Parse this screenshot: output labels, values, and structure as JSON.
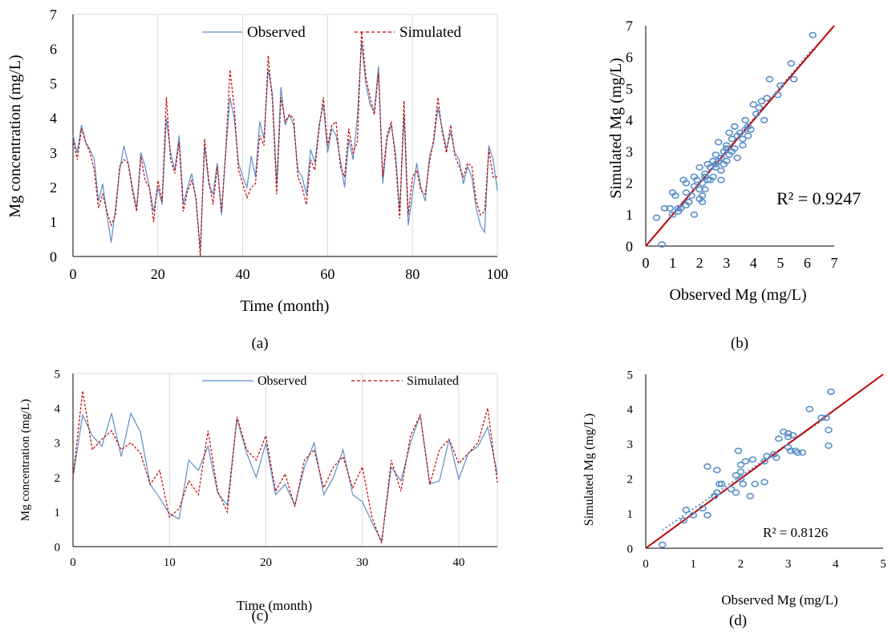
{
  "colors": {
    "observed": "#5b8fc9",
    "simulated": "#c00000",
    "one_to_one": "#c00000",
    "trend": "#5b8fc9",
    "grid": "#d9d9d9",
    "axis": "#000000"
  },
  "captions": [
    "(a)",
    "(b)",
    "(c)",
    "(d)"
  ],
  "chart_data": [
    {
      "type": "line",
      "id": "a",
      "xlabel": "Time (month)",
      "ylabel": "Mg concentration (mg/L)",
      "xlim": [
        0,
        100
      ],
      "ylim": [
        0,
        7
      ],
      "xticks": [
        0,
        20,
        40,
        60,
        80,
        100
      ],
      "yticks": [
        0,
        1,
        2,
        3,
        4,
        5,
        6,
        7
      ],
      "grid": "vertical",
      "legend_position": "top",
      "series": [
        {
          "name": "Observed",
          "style": "solid",
          "x": [
            0,
            1,
            2,
            3,
            4,
            5,
            6,
            7,
            8,
            9,
            10,
            11,
            12,
            13,
            14,
            15,
            16,
            17,
            18,
            19,
            20,
            21,
            22,
            23,
            24,
            25,
            26,
            27,
            28,
            29,
            30,
            31,
            32,
            33,
            34,
            35,
            36,
            37,
            38,
            39,
            40,
            41,
            42,
            43,
            44,
            45,
            46,
            47,
            48,
            49,
            50,
            51,
            52,
            53,
            54,
            55,
            56,
            57,
            58,
            59,
            60,
            61,
            62,
            63,
            64,
            65,
            66,
            67,
            68,
            69,
            70,
            71,
            72,
            73,
            74,
            75,
            76,
            77,
            78,
            79,
            80,
            81,
            82,
            83,
            84,
            85,
            86,
            87,
            88,
            89,
            90,
            91,
            92,
            93,
            94,
            95,
            96,
            97,
            98,
            99,
            100
          ],
          "values": [
            3.5,
            3.0,
            3.8,
            3.3,
            3.1,
            2.8,
            1.6,
            2.1,
            1.2,
            0.4,
            1.4,
            2.5,
            3.2,
            2.7,
            2.0,
            1.4,
            3.0,
            2.6,
            2.0,
            1.3,
            2.0,
            1.5,
            4.0,
            3.0,
            2.5,
            3.5,
            1.5,
            2.0,
            2.4,
            1.6,
            0.2,
            3.2,
            2.1,
            1.8,
            2.7,
            1.2,
            3.0,
            4.6,
            4.0,
            2.7,
            2.3,
            2.0,
            2.9,
            2.3,
            3.9,
            3.4,
            5.4,
            4.7,
            2.1,
            4.9,
            3.8,
            4.1,
            3.8,
            2.5,
            2.3,
            1.8,
            3.1,
            2.7,
            3.8,
            4.4,
            3.0,
            3.7,
            3.5,
            2.8,
            2.0,
            3.4,
            2.8,
            4.0,
            6.2,
            5.0,
            4.4,
            4.2,
            5.5,
            2.1,
            3.4,
            3.8,
            3.0,
            1.3,
            4.1,
            0.9,
            1.8,
            2.7,
            2.0,
            1.6,
            2.9,
            3.3,
            4.3,
            3.7,
            3.1,
            3.6,
            3.0,
            2.8,
            2.1,
            2.6,
            2.3,
            1.4,
            0.9,
            0.7,
            3.2,
            2.8,
            1.9
          ]
        },
        {
          "name": "Simulated",
          "style": "dashed",
          "x": [
            0,
            1,
            2,
            3,
            4,
            5,
            6,
            7,
            8,
            9,
            10,
            11,
            12,
            13,
            14,
            15,
            16,
            17,
            18,
            19,
            20,
            21,
            22,
            23,
            24,
            25,
            26,
            27,
            28,
            29,
            30,
            31,
            32,
            33,
            34,
            35,
            36,
            37,
            38,
            39,
            40,
            41,
            42,
            43,
            44,
            45,
            46,
            47,
            48,
            49,
            50,
            51,
            52,
            53,
            54,
            55,
            56,
            57,
            58,
            59,
            60,
            61,
            62,
            63,
            64,
            65,
            66,
            67,
            68,
            69,
            70,
            71,
            72,
            73,
            74,
            75,
            76,
            77,
            78,
            79,
            80,
            81,
            82,
            83,
            84,
            85,
            86,
            87,
            88,
            89,
            90,
            91,
            92,
            93,
            94,
            95,
            96,
            97,
            98,
            99,
            100
          ],
          "values": [
            3.4,
            2.8,
            3.7,
            3.3,
            3.0,
            2.5,
            1.4,
            1.8,
            1.3,
            0.9,
            1.2,
            2.6,
            2.8,
            2.7,
            1.9,
            1.3,
            2.9,
            2.2,
            2.0,
            1.0,
            2.2,
            1.6,
            4.6,
            2.8,
            2.4,
            3.3,
            1.3,
            1.9,
            2.2,
            1.7,
            0.0,
            3.4,
            2.2,
            1.5,
            2.6,
            1.3,
            3.1,
            5.4,
            4.3,
            2.5,
            2.1,
            1.7,
            2.0,
            2.1,
            3.5,
            3.2,
            5.8,
            4.5,
            1.8,
            4.6,
            3.9,
            4.1,
            4.0,
            2.3,
            2.0,
            1.5,
            2.8,
            2.5,
            3.7,
            4.6,
            3.2,
            3.8,
            3.9,
            2.6,
            2.3,
            3.7,
            3.0,
            3.3,
            6.5,
            5.2,
            4.6,
            4.1,
            5.3,
            2.3,
            3.5,
            3.9,
            2.8,
            1.1,
            4.5,
            1.2,
            2.3,
            2.5,
            1.9,
            1.8,
            2.7,
            3.4,
            4.6,
            3.6,
            3.0,
            3.8,
            2.9,
            2.6,
            2.3,
            2.7,
            2.6,
            1.6,
            1.2,
            1.3,
            3.1,
            2.3,
            2.3
          ]
        }
      ]
    },
    {
      "type": "scatter",
      "id": "b",
      "xlabel": "Observed Mg (mg/L)",
      "ylabel": "Simulated Mg (mg/L)",
      "xlim": [
        0,
        7
      ],
      "ylim": [
        0,
        7
      ],
      "xticks": [
        0,
        1,
        2,
        3,
        4,
        5,
        6,
        7
      ],
      "yticks": [
        0,
        1,
        2,
        3,
        4,
        5,
        6,
        7
      ],
      "annotation": "R² = 0.9247",
      "series": [
        {
          "name": "points",
          "x": [
            0.4,
            0.6,
            0.7,
            0.9,
            1.0,
            1.1,
            1.2,
            1.3,
            1.4,
            1.5,
            1.5,
            1.6,
            1.7,
            1.8,
            1.9,
            2.0,
            2.0,
            2.1,
            2.1,
            2.2,
            2.2,
            2.3,
            2.3,
            2.4,
            2.5,
            2.5,
            2.6,
            2.6,
            2.7,
            2.7,
            2.8,
            2.8,
            2.9,
            2.9,
            3.0,
            3.0,
            3.1,
            3.1,
            3.2,
            3.2,
            3.3,
            3.3,
            3.4,
            3.4,
            3.5,
            3.6,
            3.7,
            3.7,
            3.8,
            3.8,
            3.9,
            4.0,
            4.1,
            4.2,
            4.3,
            4.4,
            4.5,
            4.6,
            4.9,
            5.0,
            5.4,
            5.5,
            6.2,
            1.0,
            1.3,
            1.5,
            1.8,
            2.1,
            2.4,
            2.8,
            3.0,
            3.6,
            1.8,
            2.2,
            2.6,
            3.3,
            1.2,
            1.6,
            2.0
          ],
          "values": [
            0.9,
            0.05,
            1.2,
            1.2,
            1.7,
            1.6,
            1.1,
            1.2,
            2.1,
            1.3,
            1.7,
            1.4,
            1.6,
            2.2,
            2.1,
            2.5,
            1.5,
            1.6,
            2.0,
            2.3,
            1.8,
            2.6,
            2.1,
            2.5,
            2.7,
            2.2,
            2.5,
            2.9,
            2.7,
            3.3,
            2.8,
            2.4,
            2.6,
            3.0,
            3.1,
            2.7,
            3.6,
            2.9,
            3.4,
            3.0,
            3.8,
            3.1,
            3.5,
            2.8,
            3.6,
            3.4,
            3.7,
            4.0,
            3.8,
            3.5,
            3.7,
            4.5,
            4.2,
            4.4,
            4.6,
            4.0,
            4.7,
            5.3,
            4.8,
            5.1,
            5.8,
            5.3,
            6.7,
            1.0,
            1.2,
            2.0,
            1.0,
            1.4,
            2.1,
            2.1,
            3.2,
            3.2,
            1.9,
            2.2,
            2.6,
            3.8,
            1.2,
            1.4,
            1.8
          ]
        }
      ]
    },
    {
      "type": "line",
      "id": "c",
      "xlabel": "Time (month)",
      "ylabel": "Mg concentration (mg/L)",
      "xlim": [
        0,
        44
      ],
      "ylim": [
        0,
        5
      ],
      "xticks": [
        0,
        10,
        20,
        30,
        40
      ],
      "yticks": [
        0,
        1,
        2,
        3,
        4,
        5
      ],
      "grid": "vertical",
      "legend_position": "top",
      "series": [
        {
          "name": "Observed",
          "style": "solid",
          "x": [
            0,
            1,
            2,
            3,
            4,
            5,
            6,
            7,
            8,
            9,
            10,
            11,
            12,
            13,
            14,
            15,
            16,
            17,
            18,
            19,
            20,
            21,
            22,
            23,
            24,
            25,
            26,
            27,
            28,
            29,
            30,
            31,
            32,
            33,
            34,
            35,
            36,
            37,
            38,
            39,
            40,
            41,
            42,
            43,
            44
          ],
          "values": [
            2.0,
            3.8,
            3.2,
            2.9,
            3.85,
            2.6,
            3.85,
            3.3,
            1.8,
            1.4,
            0.95,
            0.8,
            2.5,
            2.2,
            2.9,
            1.55,
            1.2,
            3.7,
            2.7,
            2.0,
            3.0,
            1.5,
            1.8,
            1.2,
            2.3,
            3.0,
            1.5,
            2.0,
            2.8,
            1.5,
            1.3,
            0.7,
            0.15,
            2.3,
            1.9,
            3.0,
            3.8,
            1.8,
            1.9,
            3.1,
            1.95,
            2.7,
            2.9,
            3.45,
            2.1
          ]
        },
        {
          "name": "Simulated",
          "style": "dashed",
          "x": [
            0,
            1,
            2,
            3,
            4,
            5,
            6,
            7,
            8,
            9,
            10,
            11,
            12,
            13,
            14,
            15,
            16,
            17,
            18,
            19,
            20,
            21,
            22,
            23,
            24,
            25,
            26,
            27,
            28,
            29,
            30,
            31,
            32,
            33,
            34,
            35,
            36,
            37,
            38,
            39,
            40,
            41,
            42,
            43,
            44
          ],
          "values": [
            2.0,
            4.5,
            2.8,
            3.1,
            3.35,
            2.8,
            3.0,
            2.7,
            1.8,
            2.2,
            0.85,
            1.1,
            1.9,
            1.5,
            3.35,
            1.6,
            1.0,
            3.75,
            2.8,
            2.5,
            3.2,
            1.6,
            2.1,
            1.15,
            2.5,
            2.8,
            1.7,
            2.3,
            2.6,
            1.7,
            2.3,
            0.85,
            0.1,
            2.5,
            1.6,
            3.2,
            3.8,
            1.8,
            2.8,
            3.1,
            2.4,
            2.7,
            3.0,
            4.0,
            1.85
          ]
        }
      ]
    },
    {
      "type": "scatter",
      "id": "d",
      "xlabel": "Observed Mg (mg/L)",
      "ylabel": "Simulated Mg (mg/L)",
      "xlim": [
        0,
        5
      ],
      "ylim": [
        0,
        5
      ],
      "xticks": [
        0,
        1,
        2,
        3,
        4,
        5
      ],
      "yticks": [
        0,
        1,
        2,
        3,
        4,
        5
      ],
      "annotation": "R² = 0.8126",
      "series": [
        {
          "name": "points",
          "x": [
            0.35,
            0.8,
            0.85,
            1.0,
            1.2,
            1.3,
            1.3,
            1.45,
            1.5,
            1.55,
            1.6,
            1.8,
            1.9,
            1.9,
            1.95,
            2.0,
            2.0,
            2.05,
            2.1,
            2.2,
            2.25,
            2.3,
            2.5,
            2.55,
            2.7,
            2.75,
            2.8,
            2.9,
            3.0,
            3.0,
            3.05,
            3.1,
            3.15,
            3.2,
            3.3,
            3.45,
            3.7,
            3.8,
            3.85,
            3.85,
            3.9,
            3.9,
            2.5,
            2.0,
            1.5,
            3.0
          ],
          "values": [
            0.1,
            0.8,
            1.1,
            0.95,
            1.15,
            0.95,
            2.35,
            1.5,
            2.25,
            1.85,
            1.85,
            1.7,
            2.1,
            1.6,
            2.8,
            2.0,
            2.4,
            1.85,
            2.5,
            1.5,
            2.55,
            1.85,
            1.9,
            2.65,
            2.7,
            2.6,
            3.15,
            3.35,
            3.2,
            3.3,
            2.8,
            3.25,
            2.8,
            2.75,
            2.75,
            4.0,
            3.75,
            3.75,
            2.95,
            3.4,
            4.5,
            4.5,
            2.5,
            2.2,
            1.6,
            2.9
          ]
        }
      ]
    }
  ]
}
